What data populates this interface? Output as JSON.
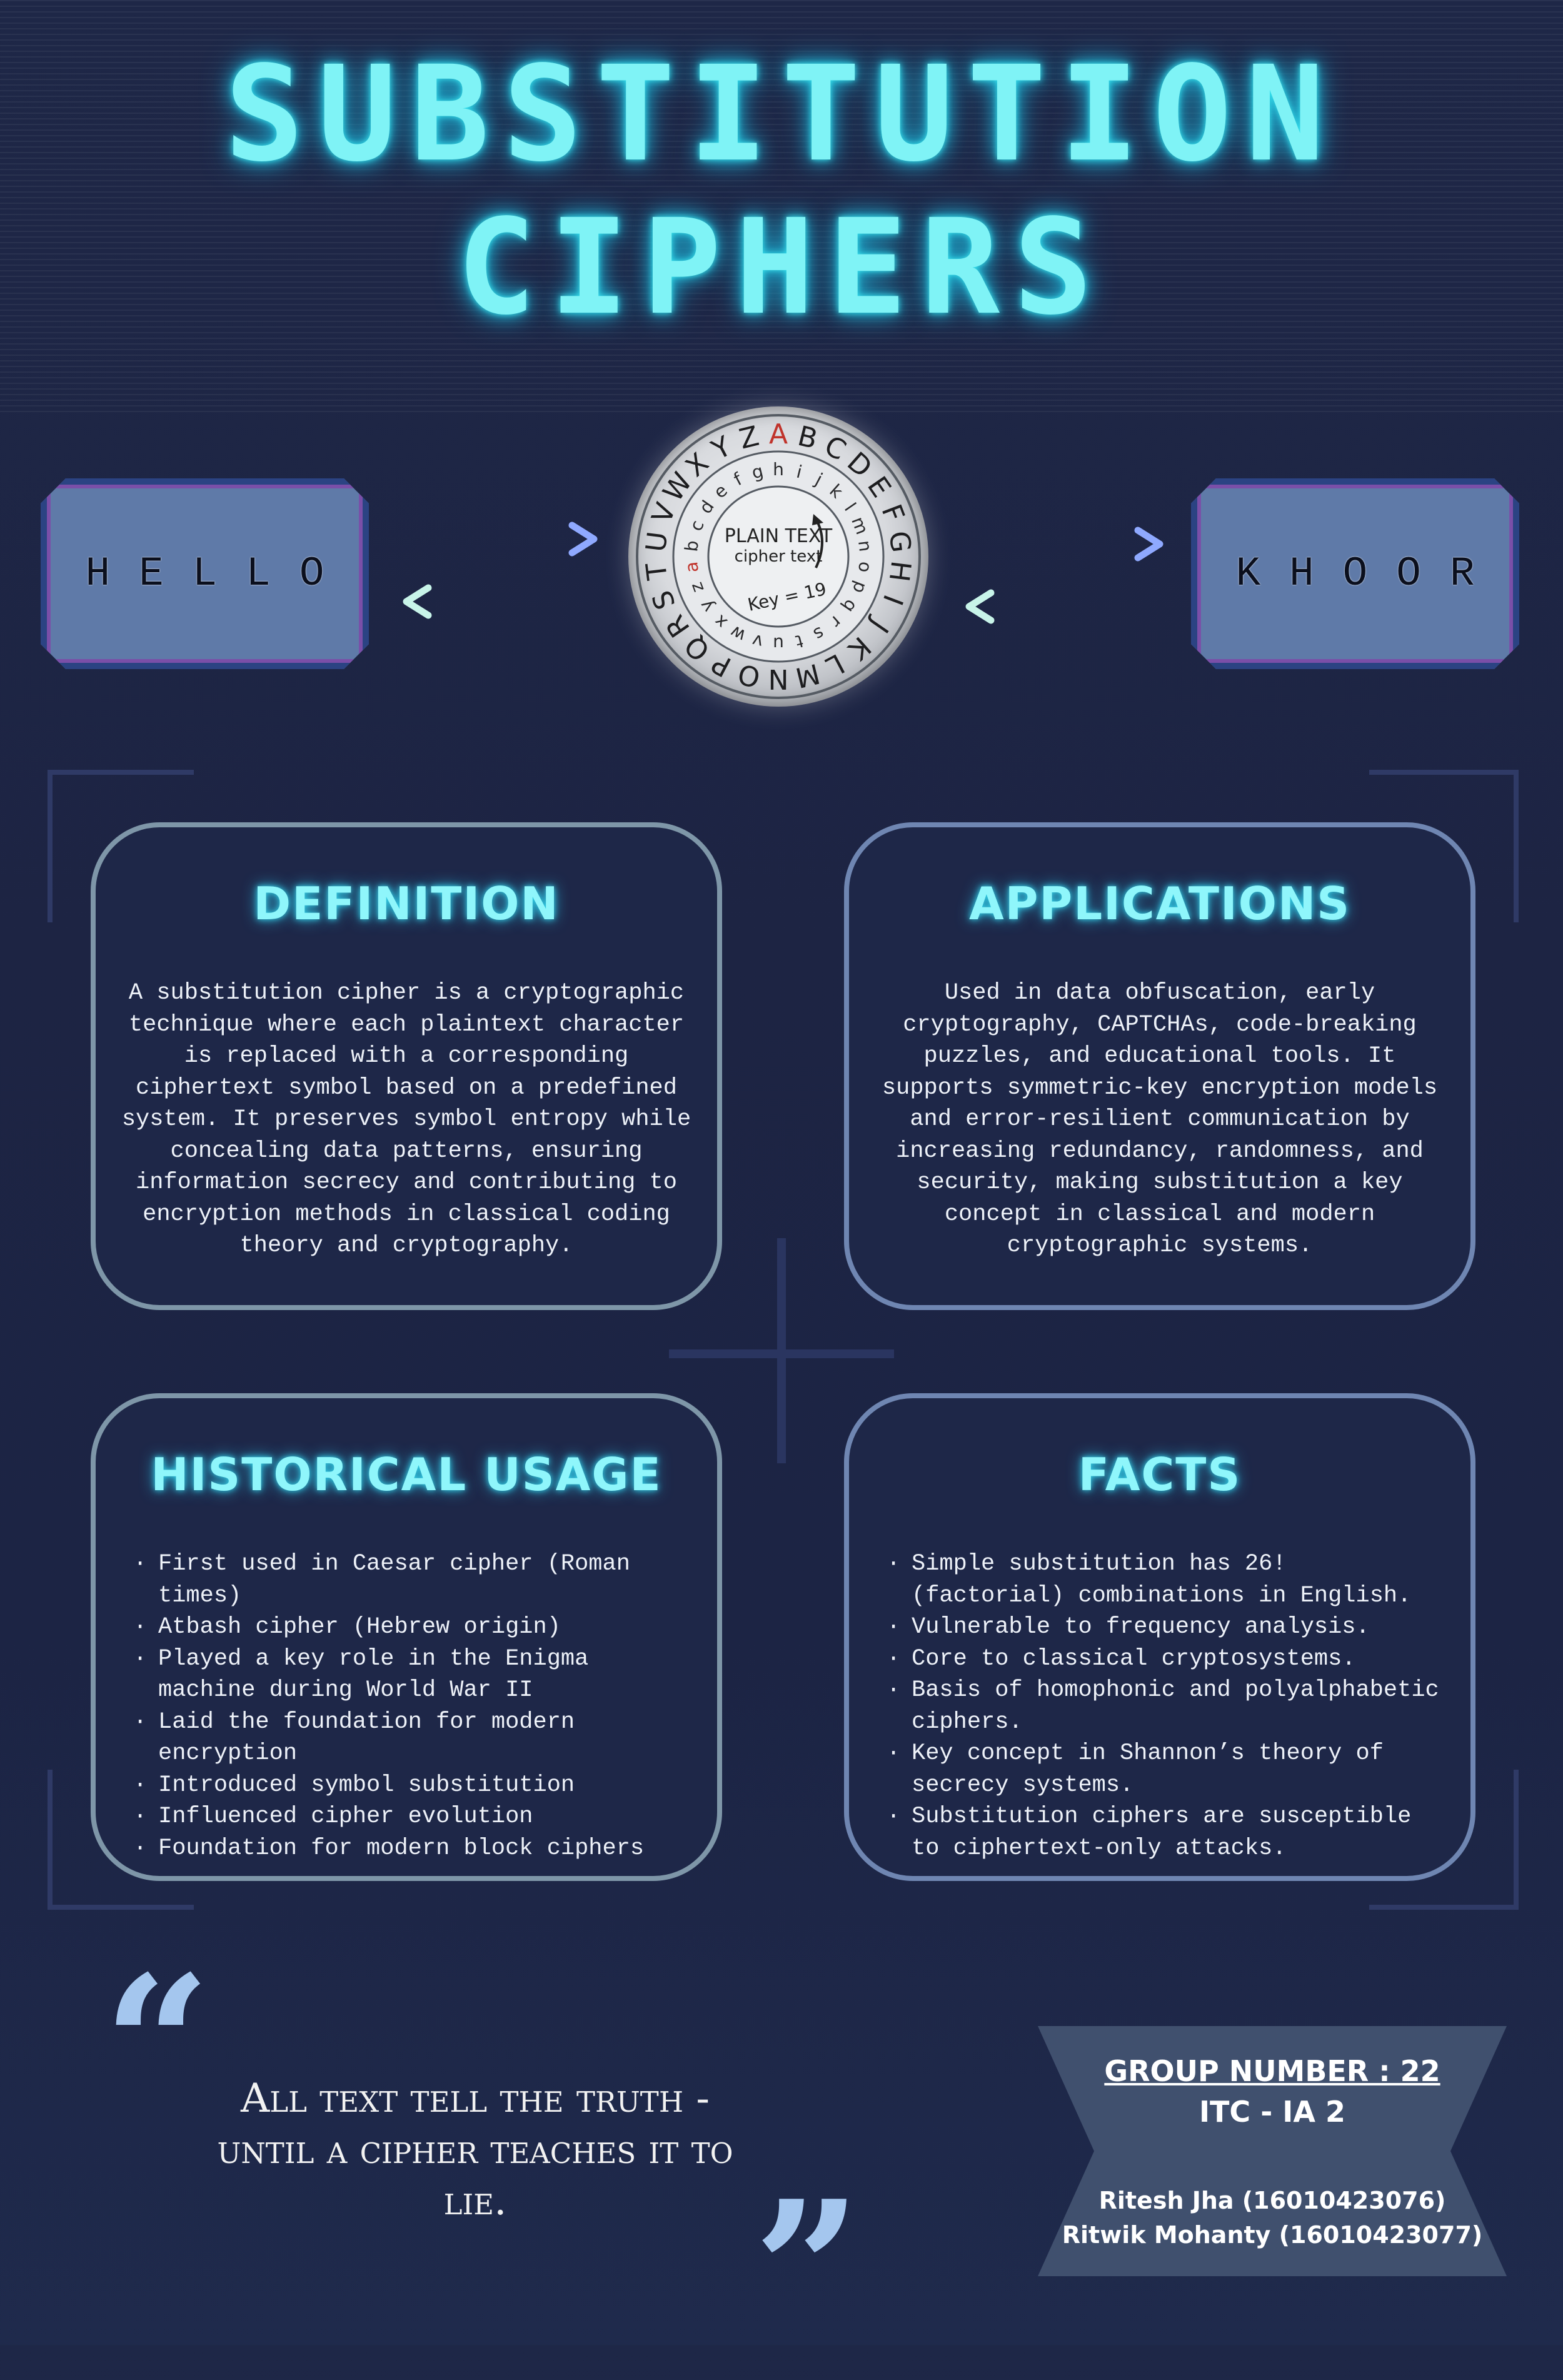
{
  "title": {
    "line1": "SUBSTITUTION",
    "line2": "CIPHERS"
  },
  "plaintext_word": "HELLO",
  "ciphertext_word": "KHOOR",
  "wheel": {
    "outer_letters": "ABCDEFGHIJ",
    "inner_label_1": "PLAIN TEXT",
    "inner_label_2": "cipher text",
    "key_label": "Key = 19"
  },
  "cards": {
    "definition": {
      "heading": "DEFINITION",
      "text": "A substitution cipher is a cryptographic technique where each plaintext character is replaced with a corresponding ciphertext symbol based on a predefined system. It preserves symbol entropy while concealing data patterns, ensuring information secrecy and contributing to encryption methods in classical coding theory and cryptography."
    },
    "applications": {
      "heading": "APPLICATIONS",
      "text": "Used in data obfuscation, early cryptography, CAPTCHAs, code-breaking puzzles, and educational tools. It supports symmetric-key encryption models and error-resilient communication by increasing redundancy, randomness, and security, making substitution a key concept in classical and modern cryptographic systems."
    },
    "historical": {
      "heading": "HISTORICAL USAGE",
      "items": [
        "First used in Caesar cipher (Roman times)",
        "Atbash cipher (Hebrew origin)",
        "Played a key role in the Enigma machine during World War II",
        "Laid the foundation for modern encryption",
        "Introduced symbol substitution",
        "Influenced cipher evolution",
        "Foundation for modern block ciphers"
      ]
    },
    "facts": {
      "heading": "FACTS",
      "items": [
        "Simple substitution has 26! (factorial) combinations in English.",
        "Vulnerable to frequency analysis.",
        "Core to classical cryptosystems.",
        "Basis of homophonic and polyalphabetic ciphers.",
        "Key concept in Shannon’s theory of secrecy systems.",
        "Substitution ciphers are susceptible to ciphertext-only attacks."
      ]
    }
  },
  "quote": {
    "open_mark": "“",
    "close_mark": "”",
    "text": "All text tell the truth - until a cipher teaches it to lie."
  },
  "group": {
    "number_label": "GROUP NUMBER : 22",
    "class_label": "ITC - IA 2",
    "member_1": "Ritesh Jha (16010423076)",
    "member_2": "Ritwik Mohanty (16010423077)"
  },
  "colors": {
    "background": "#1e2747",
    "title_glow": "#7ff3f6",
    "card_border": "#6f86b2",
    "word_box": "#5f7aa8",
    "accent_red": "#c0332b"
  }
}
